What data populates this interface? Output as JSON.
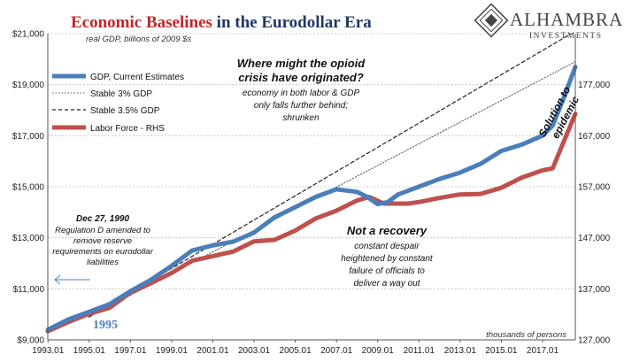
{
  "chart_data": {
    "type": "line",
    "title": {
      "part1": "Economic Baselines",
      "part2": " in the Eurodollar Era"
    },
    "subtitle": "real GDP, billions of 2009 $s",
    "brand": {
      "name": "ALHAMBRA",
      "sub": "INVESTMENTS"
    },
    "x_ticks": [
      "1993.01",
      "1995.01",
      "1997.01",
      "1999.01",
      "2001.01",
      "2003.01",
      "2005.01",
      "2007.01",
      "2009.01",
      "2011.01",
      "2013.01",
      "2015.01",
      "2017.01"
    ],
    "xlim": [
      1993,
      2018.6
    ],
    "y_left": {
      "ylim": [
        9000,
        21000
      ],
      "ticks": [
        "$9,000",
        "$11,000",
        "$13,000",
        "$15,000",
        "$17,000",
        "$19,000",
        "$21,000"
      ],
      "tick_values": [
        9000,
        11000,
        13000,
        15000,
        17000,
        19000,
        21000
      ]
    },
    "y_right": {
      "ylim": [
        127000,
        187000
      ],
      "ticks": [
        "127,000",
        "137,000",
        "147,000",
        "157,000",
        "167,000",
        "177,000"
      ],
      "tick_values": [
        127000,
        137000,
        147000,
        157000,
        167000,
        177000
      ],
      "unit_label": "thousands of persons"
    },
    "legend": [
      {
        "label": "GDP, Current Estimates",
        "style": "thick-blue"
      },
      {
        "label": "Stable 3% GDP",
        "style": "dotted"
      },
      {
        "label": "Stable 3.5% GDP",
        "style": "dashed"
      },
      {
        "label": "Labor Force - RHS",
        "style": "thick-red"
      }
    ],
    "series": [
      {
        "name": "GDP, Current Estimates",
        "axis": "left",
        "color": "#4a7ebb",
        "points": [
          [
            1993,
            9400
          ],
          [
            1994,
            9800
          ],
          [
            1995,
            10100
          ],
          [
            1996,
            10400
          ],
          [
            1997,
            10900
          ],
          [
            1998,
            11350
          ],
          [
            1999,
            11900
          ],
          [
            2000,
            12500
          ],
          [
            2001,
            12700
          ],
          [
            2002,
            12850
          ],
          [
            2003,
            13200
          ],
          [
            2004,
            13800
          ],
          [
            2005,
            14200
          ],
          [
            2006,
            14600
          ],
          [
            2007,
            14900
          ],
          [
            2008,
            14800
          ],
          [
            2008.5,
            14600
          ],
          [
            2009.0,
            14320
          ],
          [
            2009.5,
            14400
          ],
          [
            2010,
            14700
          ],
          [
            2011,
            15000
          ],
          [
            2012,
            15300
          ],
          [
            2013,
            15550
          ],
          [
            2014,
            15900
          ],
          [
            2015,
            16400
          ],
          [
            2016,
            16650
          ],
          [
            2017,
            17000
          ],
          [
            2017.5,
            17400
          ],
          [
            2018,
            18400
          ],
          [
            2018.6,
            19700
          ]
        ]
      },
      {
        "name": "Stable 3% GDP",
        "axis": "left",
        "style": "dotted",
        "color": "#555555",
        "points": [
          [
            1995,
            9900
          ],
          [
            2018.6,
            19900
          ]
        ]
      },
      {
        "name": "Stable 3.5% GDP",
        "axis": "left",
        "style": "dashed",
        "color": "#222222",
        "points": [
          [
            1995,
            9900
          ],
          [
            2018.4,
            21000
          ]
        ]
      },
      {
        "name": "Labor Force - RHS",
        "axis": "right",
        "color": "#c0504d",
        "points": [
          [
            1993,
            128700
          ],
          [
            1994,
            130500
          ],
          [
            1995,
            132100
          ],
          [
            1996,
            133300
          ],
          [
            1997,
            136200
          ],
          [
            1998,
            138100
          ],
          [
            1999,
            140100
          ],
          [
            2000,
            142500
          ],
          [
            2001,
            143400
          ],
          [
            2002,
            144300
          ],
          [
            2003,
            146300
          ],
          [
            2004,
            146600
          ],
          [
            2005,
            148400
          ],
          [
            2006,
            150800
          ],
          [
            2007,
            152300
          ],
          [
            2008,
            154300
          ],
          [
            2008.6,
            155000
          ],
          [
            2009.3,
            153700
          ],
          [
            2009.9,
            153700
          ],
          [
            2010.5,
            153700
          ],
          [
            2011,
            154000
          ],
          [
            2012,
            154800
          ],
          [
            2013,
            155500
          ],
          [
            2014,
            155600
          ],
          [
            2015,
            156800
          ],
          [
            2016,
            158800
          ],
          [
            2017,
            160200
          ],
          [
            2017.5,
            160600
          ],
          [
            2018.6,
            171300
          ]
        ]
      }
    ],
    "annotations": {
      "opioid_title": [
        "Where might the opioid",
        "crisis have originated?"
      ],
      "opioid_body": [
        "economy in both labor & GDP",
        "only falls further behind;",
        "shrunken"
      ],
      "recovery_title": "Not a recovery",
      "recovery_body": [
        "constant despair",
        "heightened by constant",
        "failure of officials to",
        "deliver a way out"
      ],
      "dec_title": "Dec 27, 1990",
      "dec_body": [
        "Regulation D amended to",
        "remove reserve",
        "requirements on eurodollar",
        "liabilities"
      ],
      "solution": [
        "Solution to",
        "epidemic"
      ],
      "year_label": "1995"
    },
    "grid": true
  },
  "colors": {
    "gdp": "#4a7ebb",
    "labor": "#c0504d",
    "title_red": "#c0282d",
    "title_navy": "#1f3864",
    "grid": "#bfbfbf"
  }
}
